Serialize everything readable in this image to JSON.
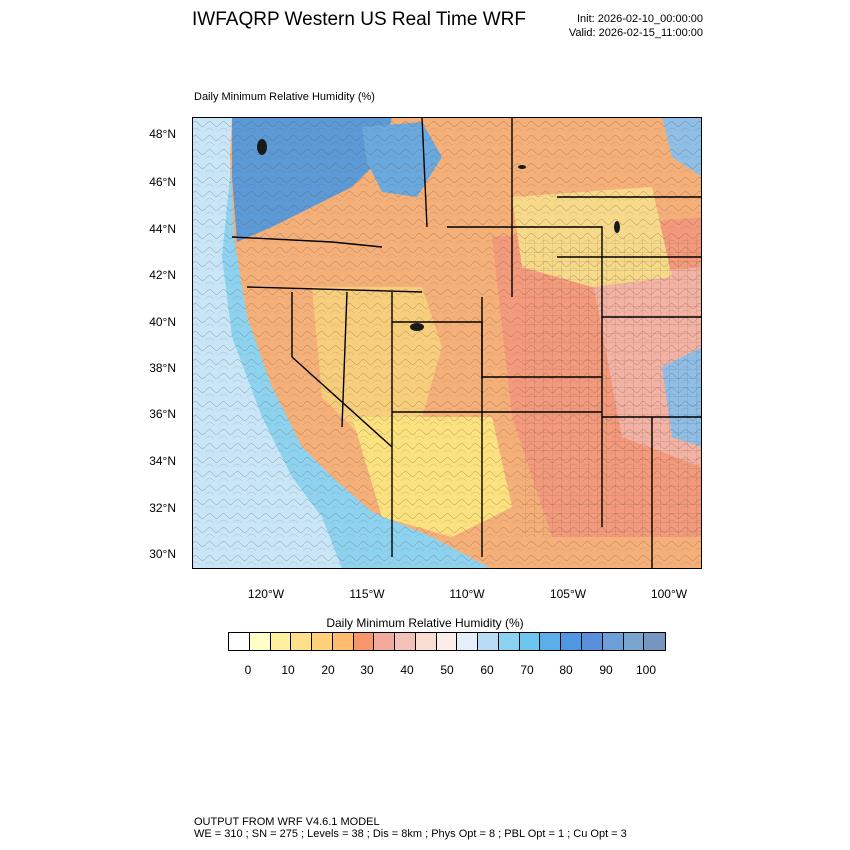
{
  "header": {
    "title": "IWFAQRP Western US Real Time WRF",
    "init": "Init: 2026-02-10_00:00:00",
    "valid": "Valid: 2026-02-15_11:00:00"
  },
  "map": {
    "subtitle": "Daily Minimum Relative Humidity   (%)",
    "lat_ticks": [
      "48°N",
      "46°N",
      "44°N",
      "42°N",
      "40°N",
      "38°N",
      "36°N",
      "34°N",
      "32°N",
      "30°N"
    ],
    "lon_ticks": [
      "120°W",
      "115°W",
      "110°W",
      "105°W",
      "100°W"
    ],
    "ocean_color": "#8dd3f0",
    "land_colors": [
      "#f5b07a",
      "#f7cf7c",
      "#f39a7c",
      "#f3b3a4",
      "#fbe27f",
      "#5b9ad6",
      "#c2ddf3"
    ]
  },
  "colorbar": {
    "title": "Daily Minimum Relative Humidity  (%)",
    "labels": [
      "0",
      "10",
      "20",
      "30",
      "40",
      "50",
      "60",
      "70",
      "80",
      "90",
      "100"
    ],
    "colors": [
      "#ffffff",
      "#ffffc8",
      "#fff0a0",
      "#ffe08a",
      "#ffd27a",
      "#ffbc6f",
      "#f7966c",
      "#f1aa9c",
      "#f3c1b8",
      "#f9dcd2",
      "#fbeee8",
      "#e6eefb",
      "#b9dcf6",
      "#8ad2f2",
      "#6cc6f0",
      "#5aaee9",
      "#4f97e3",
      "#5a8fdb",
      "#6c9fd7",
      "#7aa5cf",
      "#7597bf"
    ]
  },
  "footer": {
    "line1": "OUTPUT FROM WRF V4.6.1 MODEL",
    "line2": "WE = 310 ; SN = 275 ; Levels = 38 ; Dis = 8km ; Phys Opt = 8 ; PBL Opt = 1 ; Cu Opt = 3"
  }
}
